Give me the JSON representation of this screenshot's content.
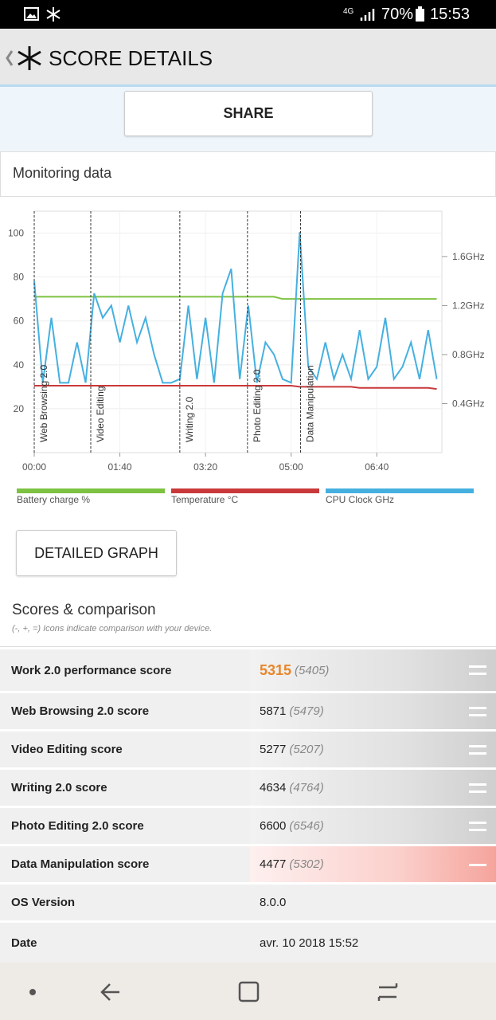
{
  "status_bar": {
    "network": "4G",
    "battery": "70%",
    "time": "15:53"
  },
  "header": {
    "title": "SCORE DETAILS"
  },
  "share_button": "SHARE",
  "monitoring": {
    "title": "Monitoring data",
    "chart_data": {
      "type": "line",
      "x": [
        0,
        10,
        20,
        30,
        40,
        50,
        60,
        70,
        80,
        90,
        100,
        110,
        120,
        130,
        140,
        150,
        160,
        170,
        180,
        190,
        200,
        210,
        220,
        230,
        240,
        250,
        260,
        270,
        280,
        290,
        300,
        310,
        320,
        330,
        340,
        350,
        360,
        370,
        380,
        390,
        400,
        410,
        420,
        430,
        440,
        450,
        460,
        470
      ],
      "xlim": [
        0,
        476
      ],
      "xticks": [
        {
          "value": 0,
          "label": "00:00"
        },
        {
          "value": 100,
          "label": "01:40"
        },
        {
          "value": 200,
          "label": "03:20"
        },
        {
          "value": 300,
          "label": "05:00"
        },
        {
          "value": 400,
          "label": "06:40"
        }
      ],
      "ylim": [
        0,
        110
      ],
      "yticks": [
        20,
        40,
        60,
        80,
        100
      ],
      "y2lim": [
        0,
        1.97
      ],
      "y2ticks": [
        {
          "value": 0.4,
          "label": "0.4GHz"
        },
        {
          "value": 0.8,
          "label": "0.8GHz"
        },
        {
          "value": 1.2,
          "label": "1.2GHz"
        },
        {
          "value": 1.6,
          "label": "1.6GHz"
        }
      ],
      "grid": true,
      "series": [
        {
          "name": "Battery charge %",
          "color": "#7dc242",
          "values": [
            71,
            71,
            71,
            71,
            71,
            71,
            71,
            71,
            71,
            71,
            71,
            71,
            71,
            71,
            71,
            71,
            71,
            71,
            71,
            71,
            71,
            71,
            71,
            71,
            71,
            71,
            71,
            71,
            71,
            70,
            70,
            70,
            70,
            70,
            70,
            70,
            70,
            70,
            70,
            70,
            70,
            70,
            70,
            70,
            70,
            70,
            70,
            70
          ]
        },
        {
          "name": "Temperature °C",
          "color": "#c9393a",
          "values": [
            30.5,
            30.5,
            30.5,
            30.5,
            30.5,
            30.5,
            30.5,
            30.5,
            30.5,
            30.5,
            30.5,
            30.5,
            30.5,
            30.5,
            30.5,
            30.5,
            30.5,
            30.5,
            30.5,
            30.5,
            30.5,
            30.5,
            30.5,
            30.5,
            30.5,
            30.5,
            30.5,
            30.5,
            30.5,
            30.5,
            30.5,
            30,
            30,
            30,
            30,
            30,
            30,
            30,
            29.5,
            29.5,
            29.5,
            29.5,
            29.5,
            29.5,
            29.5,
            29.5,
            29.5,
            29
          ]
        },
        {
          "name": "CPU Clock GHz",
          "color": "#45b0e0",
          "axis": "y2",
          "values": [
            1.4,
            0.57,
            1.1,
            0.57,
            0.57,
            0.9,
            0.57,
            1.3,
            1.1,
            1.2,
            0.9,
            1.2,
            0.9,
            1.1,
            0.8,
            0.57,
            0.57,
            0.6,
            1.2,
            0.6,
            1.1,
            0.57,
            1.3,
            1.5,
            0.6,
            1.2,
            0.57,
            0.9,
            0.8,
            0.6,
            0.57,
            1.8,
            0.7,
            0.6,
            0.9,
            0.6,
            0.8,
            0.6,
            1.0,
            0.6,
            0.7,
            1.1,
            0.6,
            0.7,
            0.9,
            0.6,
            1.0,
            0.6
          ]
        }
      ],
      "annotations": [
        {
          "x": 0,
          "text": "Web Browsing 2.0"
        },
        {
          "x": 66,
          "text": "Video Editing"
        },
        {
          "x": 170,
          "text": "Writing 2.0"
        },
        {
          "x": 249,
          "text": "Photo Editing 2.0"
        },
        {
          "x": 311,
          "text": "Data Manipulation"
        }
      ]
    }
  },
  "detailed_graph_button": "DETAILED GRAPH",
  "scores": {
    "title": "Scores & comparison",
    "note": "(-, +, =) Icons indicate comparison with your device.",
    "rows": [
      {
        "label": "Work 2.0 performance score",
        "score": "5315",
        "comparison": "(5405)"
      },
      {
        "label": "Web Browsing 2.0 score",
        "score": "5871",
        "comparison": "(5479)"
      },
      {
        "label": "Video Editing score",
        "score": "5277",
        "comparison": "(5207)"
      },
      {
        "label": "Writing 2.0 score",
        "score": "4634",
        "comparison": "(4764)"
      },
      {
        "label": "Photo Editing 2.0 score",
        "score": "6600",
        "comparison": "(6546)"
      },
      {
        "label": "Data Manipulation score",
        "score": "4477",
        "comparison": "(5302)"
      },
      {
        "label": "OS Version",
        "score": "8.0.0"
      },
      {
        "label": "Date",
        "score": "avr. 10 2018 15:52"
      }
    ]
  }
}
